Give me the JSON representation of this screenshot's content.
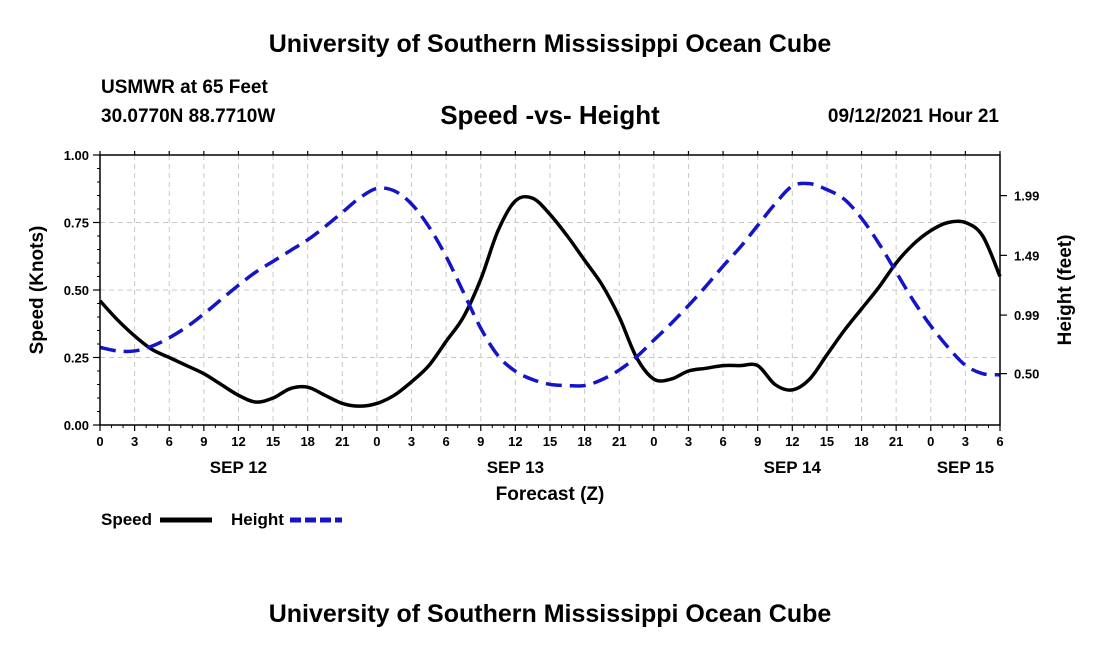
{
  "header": {
    "title": "University of Southern Mississippi Ocean Cube",
    "station_name": "USMWR at 65 Feet",
    "station_coords": "30.0770N  88.7710W",
    "chart_title": "Speed -vs- Height",
    "run_time": "09/12/2021 Hour 21"
  },
  "footer": {
    "title": "University of Southern Mississippi Ocean Cube"
  },
  "chart_data": {
    "type": "line",
    "title": "Speed -vs- Height",
    "xlabel": "Forecast (Z)",
    "ylabel": "Speed (Knots)",
    "y2label": "Height (feet)",
    "xlim": [
      0,
      78
    ],
    "ylim": [
      0,
      1.0
    ],
    "y2lim": [
      0.07,
      2.33
    ],
    "x_tick_values": [
      0,
      3,
      6,
      9,
      12,
      15,
      18,
      21,
      24,
      27,
      30,
      33,
      36,
      39,
      42,
      45,
      48,
      51,
      54,
      57,
      60,
      63,
      66,
      69,
      72,
      75,
      78
    ],
    "x_tick_labels": [
      "0",
      "3",
      "6",
      "9",
      "12",
      "15",
      "18",
      "21",
      "0",
      "3",
      "6",
      "9",
      "12",
      "15",
      "18",
      "21",
      "0",
      "3",
      "6",
      "9",
      "12",
      "15",
      "18",
      "21",
      "0",
      "3",
      "6"
    ],
    "day_labels": [
      {
        "x": 12,
        "label": "SEP 12"
      },
      {
        "x": 36,
        "label": "SEP 13"
      },
      {
        "x": 60,
        "label": "SEP 14"
      },
      {
        "x": 75,
        "label": "SEP 15"
      }
    ],
    "y_tick_values": [
      0.0,
      0.25,
      0.5,
      0.75,
      1.0
    ],
    "y_tick_labels": [
      "0.00",
      "0.25",
      "0.50",
      "0.75",
      "1.00"
    ],
    "y2_tick_values": [
      0.5,
      0.99,
      1.49,
      1.99
    ],
    "y2_tick_labels": [
      "0.50",
      "0.99",
      "1.49",
      "1.99"
    ],
    "grid": true,
    "legend": "bottom-left",
    "series": [
      {
        "name": "Speed",
        "axis": "left",
        "color": "#000000",
        "style": "solid",
        "x": [
          0,
          1.5,
          3,
          4.5,
          6,
          7.5,
          9,
          10.5,
          12,
          13.5,
          15,
          16.5,
          18,
          19.5,
          21,
          22.5,
          24,
          25.5,
          27,
          28.5,
          30,
          31.5,
          33,
          34.5,
          36,
          37.5,
          39,
          40.5,
          42,
          43.5,
          45,
          46.5,
          48,
          49.5,
          51,
          52.5,
          54,
          55.5,
          57,
          58.5,
          60,
          61.5,
          63,
          64.5,
          66,
          67.5,
          69,
          70.5,
          72,
          73.5,
          75,
          76.5,
          78
        ],
        "values": [
          0.46,
          0.39,
          0.33,
          0.28,
          0.25,
          0.22,
          0.19,
          0.15,
          0.11,
          0.085,
          0.1,
          0.135,
          0.14,
          0.11,
          0.08,
          0.07,
          0.08,
          0.11,
          0.16,
          0.22,
          0.31,
          0.4,
          0.54,
          0.72,
          0.83,
          0.84,
          0.78,
          0.7,
          0.61,
          0.52,
          0.4,
          0.25,
          0.17,
          0.17,
          0.2,
          0.21,
          0.22,
          0.22,
          0.22,
          0.15,
          0.13,
          0.17,
          0.26,
          0.35,
          0.43,
          0.51,
          0.6,
          0.67,
          0.72,
          0.75,
          0.75,
          0.7,
          0.55
        ]
      },
      {
        "name": "Height",
        "axis": "right",
        "color": "#1414c8",
        "style": "dashed",
        "x": [
          0,
          1.5,
          3,
          4.5,
          6,
          7.5,
          9,
          10.5,
          12,
          13.5,
          15,
          16.5,
          18,
          19.5,
          21,
          22.5,
          24,
          25.5,
          27,
          28.5,
          30,
          31.5,
          33,
          34.5,
          36,
          37.5,
          39,
          40.5,
          42,
          43.5,
          45,
          46.5,
          48,
          49.5,
          51,
          52.5,
          54,
          55.5,
          57,
          58.5,
          60,
          61.5,
          63,
          64.5,
          66,
          67.5,
          69,
          70.5,
          72,
          73.5,
          75,
          76.5,
          78
        ],
        "values": [
          0.72,
          0.69,
          0.69,
          0.73,
          0.8,
          0.89,
          1.0,
          1.12,
          1.24,
          1.35,
          1.44,
          1.53,
          1.62,
          1.73,
          1.85,
          1.97,
          2.05,
          2.03,
          1.92,
          1.73,
          1.48,
          1.18,
          0.88,
          0.65,
          0.52,
          0.45,
          0.41,
          0.4,
          0.4,
          0.45,
          0.53,
          0.64,
          0.78,
          0.92,
          1.07,
          1.23,
          1.4,
          1.56,
          1.74,
          1.92,
          2.07,
          2.09,
          2.04,
          1.96,
          1.8,
          1.59,
          1.35,
          1.11,
          0.9,
          0.72,
          0.57,
          0.5,
          0.49
        ]
      }
    ]
  }
}
